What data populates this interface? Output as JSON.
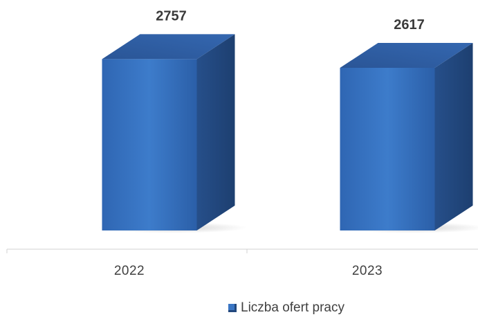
{
  "chart_data": {
    "type": "bar",
    "categories": [
      "2022",
      "2023"
    ],
    "series": [
      {
        "name": "Liczba ofert pracy",
        "values": [
          2757,
          2617
        ]
      }
    ],
    "data_labels": [
      "2757",
      "2617"
    ],
    "bar_style": "3d-box",
    "grid": false,
    "legend_position": "bottom",
    "colors": {
      "bar_front": "#3a76c4",
      "bar_top": "#2e5d9f",
      "bar_side": "#22487d",
      "axis": "#d0d0d0"
    }
  }
}
